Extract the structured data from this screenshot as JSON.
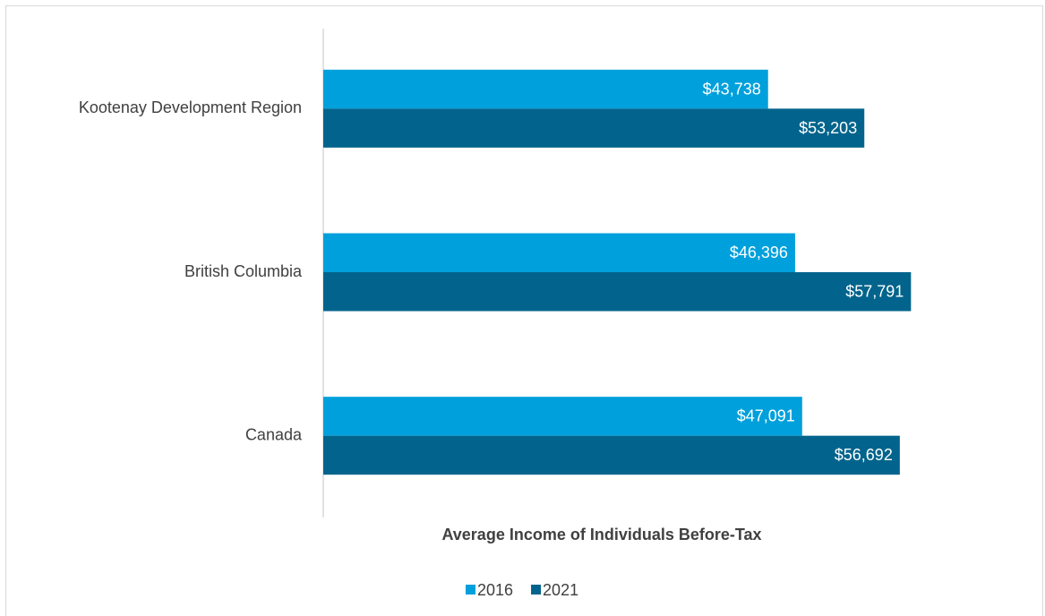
{
  "chart_data": {
    "type": "barh",
    "x_label": "Average Income of Individuals Before-Tax",
    "categories": [
      "Kootenay Development Region",
      "British Columbia",
      "Canada"
    ],
    "series": [
      {
        "name": "2016",
        "color": "#00a0dc",
        "values": [
          43738,
          46396,
          47091
        ],
        "value_labels": [
          "$43,738",
          "$46,396",
          "$47,091"
        ]
      },
      {
        "name": "2021",
        "color": "#02648c",
        "values": [
          53203,
          57791,
          56692
        ],
        "value_labels": [
          "$53,203",
          "$57,791",
          "$56,692"
        ]
      }
    ],
    "xlim": [
      0,
      70000
    ],
    "legend": "bottom"
  }
}
